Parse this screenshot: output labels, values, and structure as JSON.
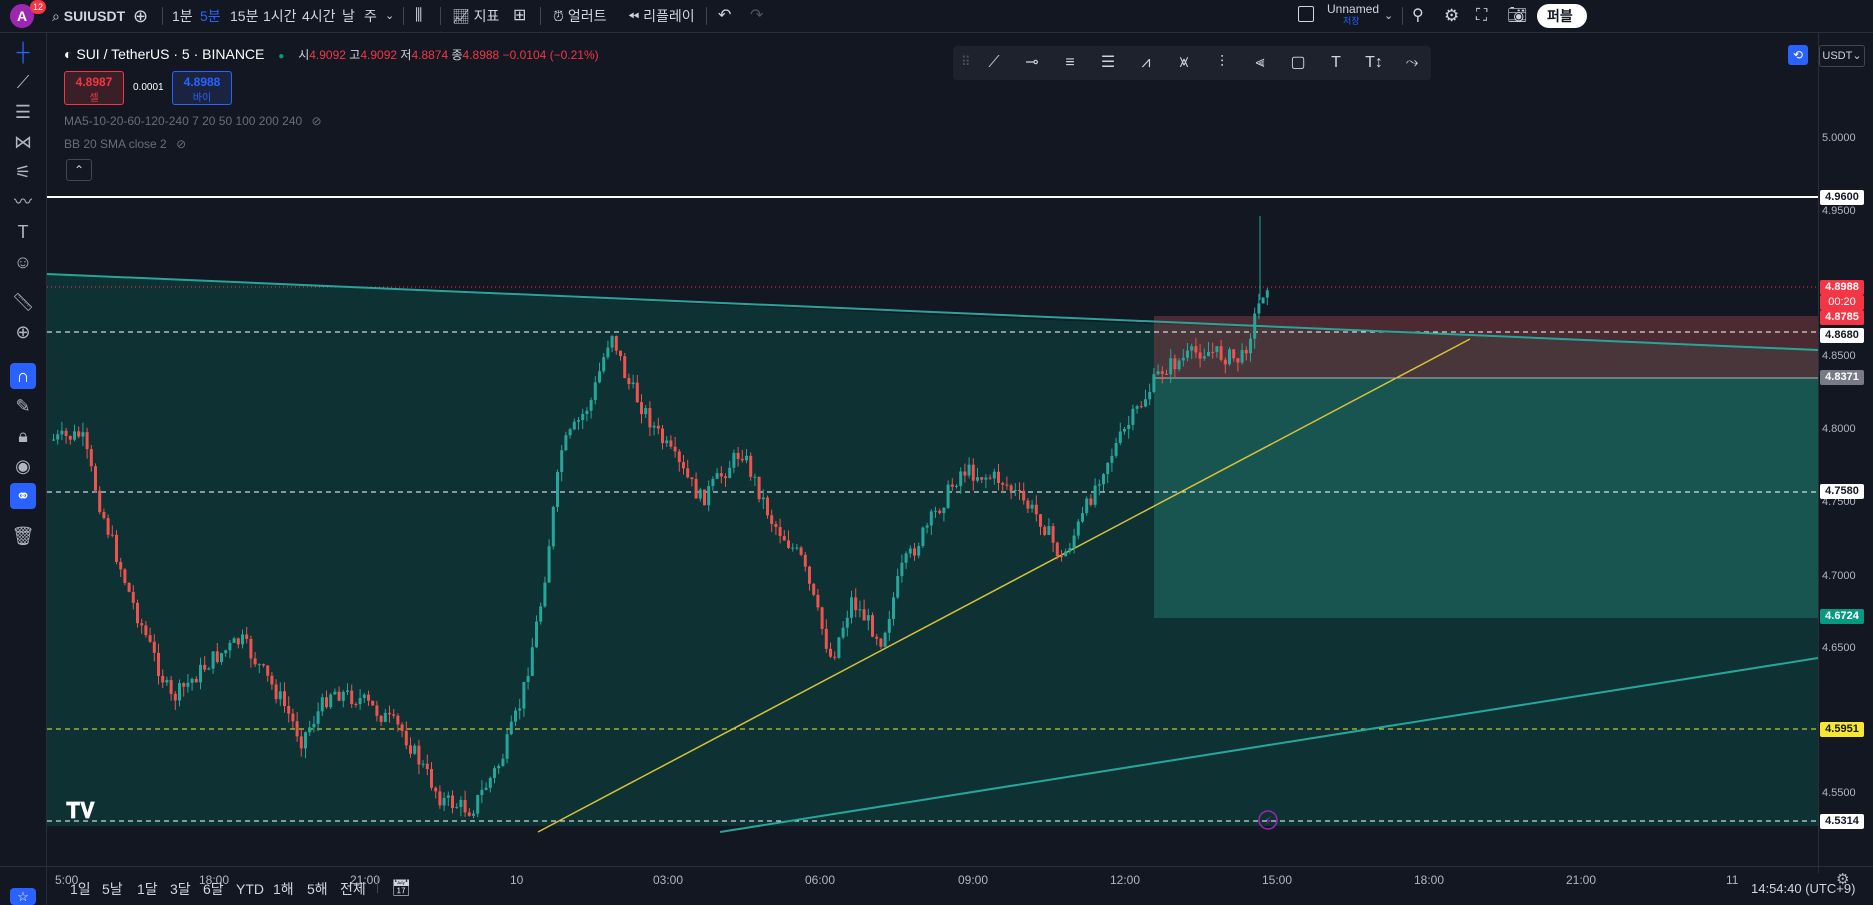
{
  "topbar": {
    "badge": "12",
    "avatar_letter": "A",
    "symbol": "SUIUSDT",
    "intervals": [
      "1분",
      "5분",
      "15분",
      "1시간",
      "4시간",
      "날",
      "주"
    ],
    "active_interval": "5분",
    "indicators_label": "지표",
    "alert_label": "얼러트",
    "replay_label": "리플레이",
    "layout_name": "Unnamed",
    "layout_status": "저장",
    "publish_label": "퍼블"
  },
  "legend": {
    "pair": "SUI / TetherUS · 5 · BINANCE",
    "o_label": "시",
    "o": "4.9092",
    "h_label": "고",
    "h": "4.9092",
    "l_label": "저",
    "l": "4.8874",
    "c_label": "종",
    "c": "4.8988",
    "change": "−0.0104 (−0.21%)",
    "sell_price": "4.8987",
    "sell_label": "셀",
    "spread": "0.0001",
    "buy_price": "4.8988",
    "buy_label": "바이",
    "ma_line": "MA5-10-20-60-120-240 7 20 50 100 200 240",
    "bb_line": "BB 20 SMA close 2"
  },
  "currency": "USDT",
  "price_axis": [
    "5.0000",
    "4.9500",
    "4.8500",
    "4.8000",
    "4.7500",
    "4.7000",
    "4.6500",
    "4.5500"
  ],
  "price_tags": [
    {
      "value": "4.9600",
      "bg": "#ffffff",
      "fg": "#131722"
    },
    {
      "value": "4.8988",
      "bg": "#f23645",
      "fg": "#ffffff"
    },
    {
      "value": "00:20",
      "bg": "#f23645",
      "fg": "#ffffff"
    },
    {
      "value": "4.8785",
      "bg": "#f23645",
      "fg": "#ffffff"
    },
    {
      "value": "4.8680",
      "bg": "#ffffff",
      "fg": "#131722"
    },
    {
      "value": "4.8371",
      "bg": "#787b86",
      "fg": "#ffffff"
    },
    {
      "value": "4.7580",
      "bg": "#ffffff",
      "fg": "#131722"
    },
    {
      "value": "4.6724",
      "bg": "#089981",
      "fg": "#ffffff"
    },
    {
      "value": "4.5951",
      "bg": "#f7e733",
      "fg": "#131722"
    },
    {
      "value": "4.5314",
      "bg": "#ffffff",
      "fg": "#131722"
    }
  ],
  "time_axis": [
    "5:00",
    "18:00",
    "21:00",
    "10",
    "03:00",
    "06:00",
    "09:00",
    "12:00",
    "15:00",
    "18:00",
    "21:00",
    "11"
  ],
  "bottombar": {
    "ranges": [
      "1일",
      "5날",
      "1달",
      "3달",
      "6달",
      "YTD",
      "1해",
      "5해",
      "전체"
    ],
    "clock": "14:54:40 (UTC+9)"
  },
  "colors": {
    "up": "#26a69a",
    "down": "#ef5350",
    "bg": "#131722",
    "accent": "#2962ff"
  },
  "left_tools": [
    "crosshair-icon",
    "trend-line-icon",
    "fib-icon",
    "pattern-icon",
    "forecast-icon",
    "brush-icon",
    "text-icon",
    "emoji-icon",
    "ruler-icon",
    "zoom-icon",
    "magnet-icon",
    "pencil-lock-icon",
    "lock-icon",
    "eye-icon",
    "link-icon",
    "trash-icon"
  ],
  "drawing_tools": [
    "trend-line-icon",
    "ray-icon",
    "parallel-channel-icon",
    "fib-icon",
    "elliott-wave-icon",
    "abcd-icon",
    "position-icon",
    "long-position-icon",
    "rectangle-icon",
    "text-icon",
    "text-price-icon",
    "path-icon"
  ]
}
